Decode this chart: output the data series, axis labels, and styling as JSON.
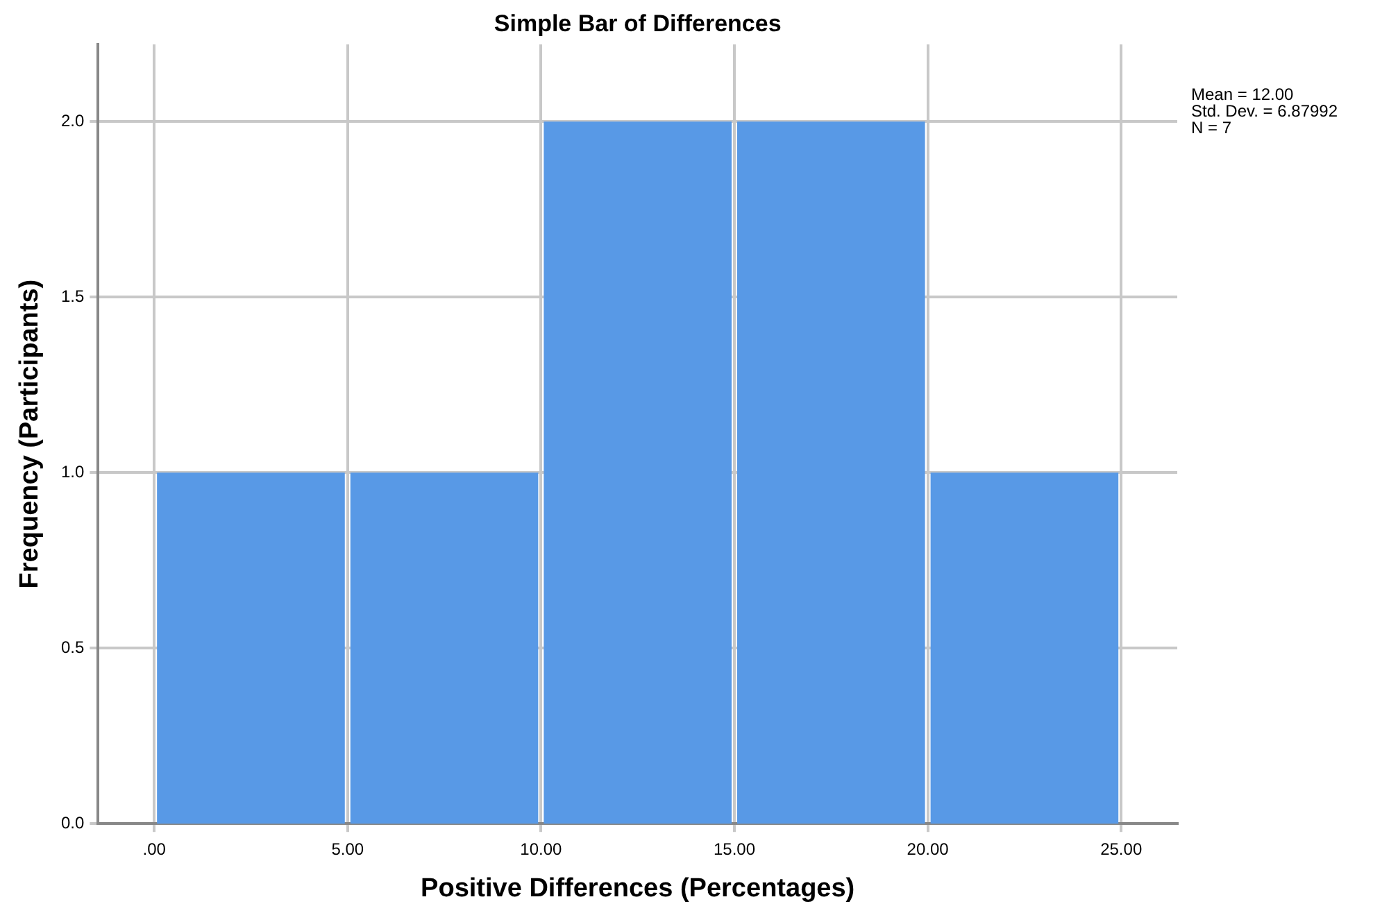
{
  "chart_data": {
    "type": "histogram",
    "title": "Simple Bar of Differences",
    "xlabel": "Positive Differences (Percentages)",
    "ylabel": "Frequency (Participants)",
    "bins": [
      0,
      5,
      10,
      15,
      20,
      25
    ],
    "values": [
      1,
      1,
      2,
      2,
      1
    ],
    "color": "#5899e6",
    "xlim": [
      -1.45,
      26.45
    ],
    "xticks": [
      {
        "value": 0,
        "label": ".00"
      },
      {
        "value": 5,
        "label": "5.00"
      },
      {
        "value": 10,
        "label": "10.00"
      },
      {
        "value": 15,
        "label": "15.00"
      },
      {
        "value": 20,
        "label": "20.00"
      },
      {
        "value": 25,
        "label": "25.00"
      }
    ],
    "ylim": [
      0,
      2.22
    ],
    "yticks": [
      {
        "value": 0,
        "label": "0.0"
      },
      {
        "value": 0.5,
        "label": "0.5"
      },
      {
        "value": 1,
        "label": "1.0"
      },
      {
        "value": 1.5,
        "label": "1.5"
      },
      {
        "value": 2,
        "label": "2.0"
      }
    ],
    "grid": true,
    "legend": false,
    "annotations": [
      "Mean = 12.00",
      "Std. Dev. = 6.87992",
      "N = 7"
    ]
  }
}
